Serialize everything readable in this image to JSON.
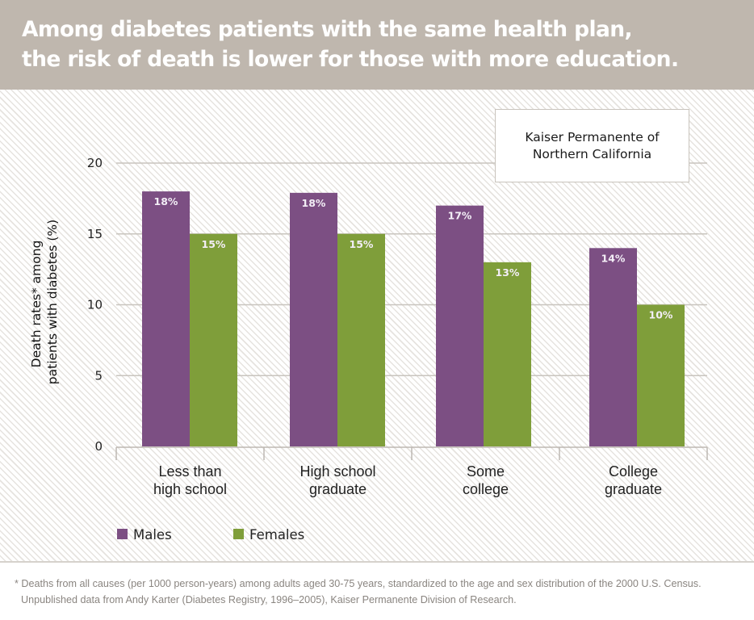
{
  "header": {
    "title_line1": "Among diabetes patients with the same health plan,",
    "title_line2": "the risk of death is lower for those with more education."
  },
  "info_box": {
    "line1": "Kaiser Permanente of",
    "line2": "Northern California"
  },
  "colors": {
    "header_bg": "#bfb7ae",
    "males": "#7c4f83",
    "females": "#7f9e3a",
    "gridline": "#c8c4be"
  },
  "chart_data": {
    "type": "bar",
    "title": "Among diabetes patients with the same health plan, the risk of death is lower for those with more education.",
    "subtitle": "Kaiser Permanente of Northern California",
    "ylabel_line1": "Death rates* among",
    "ylabel_line2": "patients with diabetes (%)",
    "xlabel": "",
    "ylim": [
      0,
      20
    ],
    "yticks": [
      0,
      5,
      10,
      15,
      20
    ],
    "grid": true,
    "legend_placement": "bottom-left",
    "categories": [
      {
        "line1": "Less than",
        "line2": "high school"
      },
      {
        "line1": "High school",
        "line2": "graduate"
      },
      {
        "line1": "Some",
        "line2": "college"
      },
      {
        "line1": "College",
        "line2": "graduate"
      }
    ],
    "series": [
      {
        "name": "Males",
        "values": [
          18,
          17.9,
          17,
          14
        ],
        "labels": [
          "18%",
          "18%",
          "17%",
          "14%"
        ]
      },
      {
        "name": "Females",
        "values": [
          15,
          15,
          13,
          10
        ],
        "labels": [
          "15%",
          "15%",
          "13%",
          "10%"
        ]
      }
    ]
  },
  "footnote": {
    "line1": "* Deaths from all causes (per 1000 person-years) among adults aged 30-75 years, standardized to the age and sex distribution of the 2000 U.S. Census.",
    "line2": "Unpublished data from Andy Karter (Diabetes Registry, 1996–2005), Kaiser Permanente Division of Research."
  }
}
